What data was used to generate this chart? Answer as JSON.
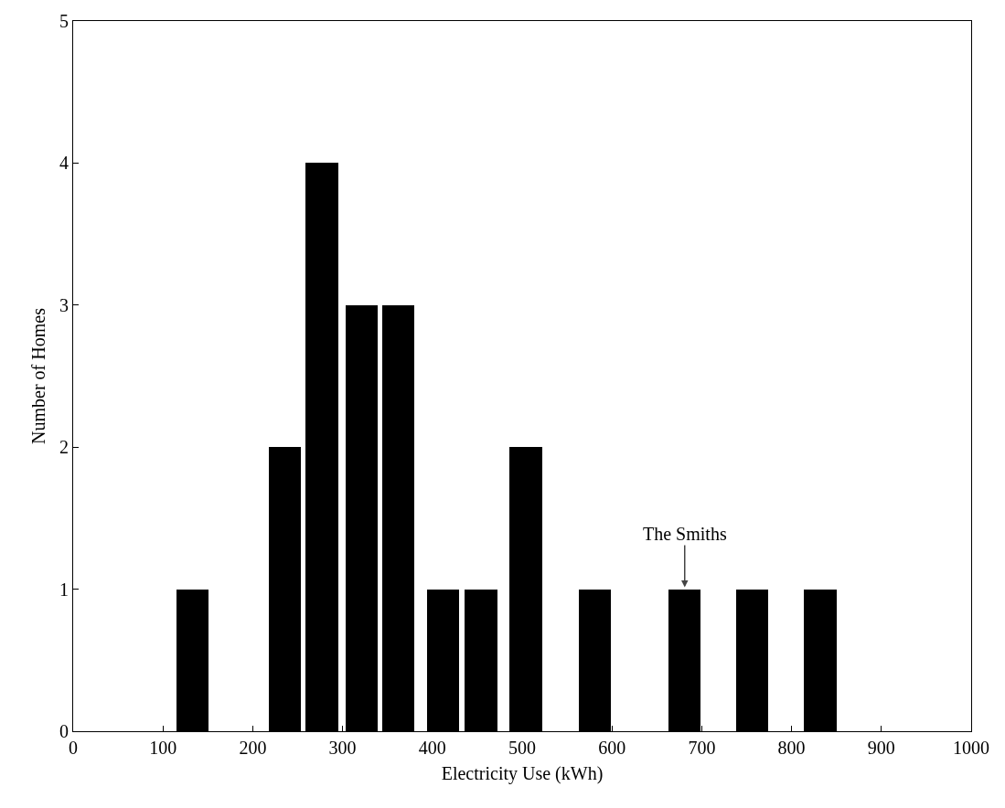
{
  "chart_data": {
    "type": "bar",
    "xlabel": "Electricity Use (kWh)",
    "ylabel": "Number of Homes",
    "x": [
      133,
      236,
      277,
      321,
      362,
      412,
      454,
      504,
      581,
      681,
      756,
      832
    ],
    "values": [
      1,
      2,
      4,
      3,
      3,
      1,
      1,
      2,
      1,
      1,
      1,
      1
    ],
    "color": "#000000",
    "xlim": [
      0,
      1000
    ],
    "xticks": [
      0,
      100,
      200,
      300,
      400,
      500,
      600,
      700,
      800,
      900,
      1000
    ],
    "ylim": [
      0,
      5
    ],
    "yticks": [
      0,
      1,
      2,
      3,
      4,
      5
    ],
    "grid": false,
    "legend": false,
    "annotations": [
      {
        "text": "The Smiths",
        "x": 681,
        "y": 1
      }
    ]
  }
}
